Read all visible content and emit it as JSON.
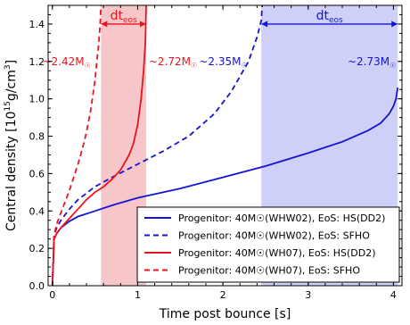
{
  "colors": {
    "red": "#e8141e",
    "blue": "#1414d2",
    "red_band": "#f7c6c8",
    "blue_band": "#cfd0f7",
    "axis": "#000000"
  },
  "chart_data": {
    "type": "line",
    "xlabel": "Time post bounce [s]",
    "ylabel_parts": {
      "main": "Central density [10",
      "sup1": "15",
      "mid": "g/cm",
      "sup2": "3",
      "end": "]"
    },
    "xlim": [
      -0.05,
      4.1
    ],
    "ylim": [
      0.0,
      1.5
    ],
    "xticks": [
      0,
      1,
      2,
      3,
      4
    ],
    "yticks": [
      0.0,
      0.2,
      0.4,
      0.6,
      0.8,
      1.0,
      1.2,
      1.4
    ],
    "xtick_labels": [
      "0",
      "1",
      "2",
      "3",
      "4"
    ],
    "ytick_labels": [
      "0.0",
      "0.2",
      "0.4",
      "0.6",
      "0.8",
      "1.0",
      "1.2",
      "1.4"
    ],
    "grid": false,
    "legend_position": "bottom-right",
    "bands": [
      {
        "color": "red",
        "x0": 0.57,
        "x1": 1.1
      },
      {
        "color": "blue",
        "x0": 2.45,
        "x1": 4.05
      }
    ],
    "arrows": [
      {
        "color": "red",
        "x0": 0.57,
        "x1": 1.1,
        "y": 1.4,
        "label": "dt",
        "sub": "eos"
      },
      {
        "color": "blue",
        "x0": 2.45,
        "x1": 4.05,
        "y": 1.4,
        "label": "dt",
        "sub": "eos"
      }
    ],
    "annotations": [
      {
        "text": "~2.42M",
        "sym": "☉",
        "color": "red",
        "x": 0.45,
        "y": 1.18,
        "anchor": "end"
      },
      {
        "text": "~2.72M",
        "sym": "☉",
        "color": "red",
        "x": 1.13,
        "y": 1.18,
        "anchor": "start"
      },
      {
        "text": "~2.35M",
        "sym": "☉",
        "color": "blue",
        "x": 1.72,
        "y": 1.18,
        "anchor": "start"
      },
      {
        "text": "~2.73M",
        "sym": "☉",
        "color": "blue",
        "x": 4.03,
        "y": 1.18,
        "anchor": "end"
      }
    ],
    "series": [
      {
        "name": "Progenitor: 40M☉(WHW02), EoS: HS(DD2)",
        "color": "blue",
        "dash": false,
        "x": [
          0,
          0.02,
          0.05,
          0.1,
          0.2,
          0.3,
          0.5,
          0.7,
          1.0,
          1.5,
          2.0,
          2.5,
          3.0,
          3.4,
          3.7,
          3.85,
          3.95,
          4.0,
          4.03,
          4.05
        ],
        "y": [
          0.0,
          0.25,
          0.28,
          0.31,
          0.345,
          0.37,
          0.4,
          0.43,
          0.47,
          0.52,
          0.58,
          0.64,
          0.71,
          0.77,
          0.83,
          0.87,
          0.92,
          0.96,
          1.0,
          1.06
        ]
      },
      {
        "name": "Progenitor: 40M☉(WHW02), EoS: SFHO",
        "color": "blue",
        "dash": true,
        "x": [
          0,
          0.02,
          0.05,
          0.1,
          0.2,
          0.3,
          0.5,
          0.7,
          1.0,
          1.3,
          1.6,
          1.9,
          2.1,
          2.3,
          2.4,
          2.45,
          2.46
        ],
        "y": [
          0.0,
          0.27,
          0.31,
          0.35,
          0.41,
          0.46,
          0.53,
          0.58,
          0.65,
          0.72,
          0.8,
          0.92,
          1.04,
          1.2,
          1.33,
          1.42,
          1.5
        ]
      },
      {
        "name": "Progenitor: 40M☉(WH07), EoS: HS(DD2)",
        "color": "red",
        "dash": false,
        "x": [
          0,
          0.02,
          0.05,
          0.1,
          0.2,
          0.3,
          0.4,
          0.5,
          0.6,
          0.7,
          0.8,
          0.9,
          0.95,
          1.0,
          1.04,
          1.07,
          1.09,
          1.1
        ],
        "y": [
          0.0,
          0.25,
          0.28,
          0.31,
          0.36,
          0.41,
          0.46,
          0.5,
          0.53,
          0.57,
          0.62,
          0.7,
          0.76,
          0.86,
          1.0,
          1.15,
          1.3,
          1.5
        ]
      },
      {
        "name": "Progenitor: 40M☉(WH07), EoS: SFHO",
        "color": "red",
        "dash": true,
        "x": [
          0,
          0.02,
          0.05,
          0.1,
          0.15,
          0.2,
          0.25,
          0.3,
          0.35,
          0.4,
          0.45,
          0.5,
          0.54,
          0.56,
          0.57
        ],
        "y": [
          0.0,
          0.27,
          0.33,
          0.39,
          0.45,
          0.51,
          0.58,
          0.65,
          0.73,
          0.82,
          0.94,
          1.1,
          1.28,
          1.4,
          1.5
        ]
      }
    ]
  }
}
